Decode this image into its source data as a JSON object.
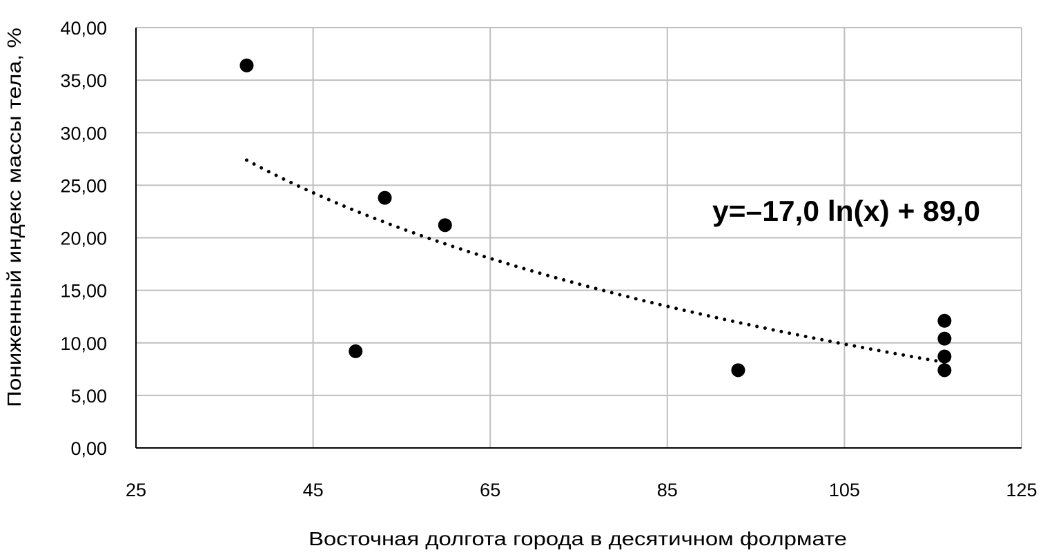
{
  "chart_data": {
    "type": "scatter",
    "title": "",
    "xlabel": "Восточная долгота города в десятичном фолрмате",
    "ylabel": "Пониженный индекс массы тела, %",
    "xlim": [
      25,
      125
    ],
    "ylim": [
      0,
      40
    ],
    "x_ticks": [
      25,
      45,
      65,
      85,
      105,
      125
    ],
    "x_tick_labels": [
      "25",
      "45",
      "65",
      "85",
      "105",
      "125"
    ],
    "y_ticks": [
      0,
      5,
      10,
      15,
      20,
      25,
      30,
      35,
      40
    ],
    "y_tick_labels": [
      "0,00",
      "5,00",
      "10,00",
      "15,00",
      "20,00",
      "25,00",
      "30,00",
      "35,00",
      "40,00"
    ],
    "grid": true,
    "series": [
      {
        "name": "points",
        "x": [
          37.5,
          49.8,
          53.1,
          59.9,
          93.0,
          116.3,
          116.3,
          116.3,
          116.3
        ],
        "y": [
          36.4,
          9.2,
          23.8,
          21.2,
          7.4,
          12.1,
          10.4,
          8.7,
          7.4
        ]
      }
    ],
    "trendline": {
      "type": "logarithmic",
      "a": -17.0,
      "b": 89.0,
      "x_range": [
        37.5,
        116.3
      ],
      "label": "y=–17,0 ln(x) + 89,0"
    },
    "colors": {
      "points": "#000000",
      "grid": "#bfbfbf",
      "axis": "#000000"
    }
  }
}
